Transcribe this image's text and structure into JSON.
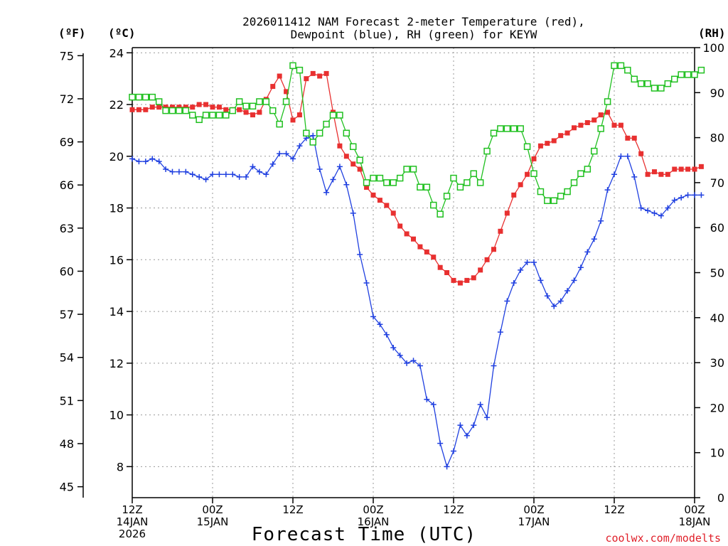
{
  "chart_data": {
    "type": "line",
    "title_line1": "2026011412 NAM Forecast 2-meter Temperature (red),",
    "title_line2": "Dewpoint (blue), RH (green) for KEYW",
    "units": {
      "left_outer": "(ºF)",
      "left_inner": "(ºC)",
      "right": "(RH)"
    },
    "xlabel": "Forecast Time (UTC)",
    "credit": "coolwx.com/modelts",
    "x_range": [
      0,
      84
    ],
    "y_celsius_range": [
      6.8,
      24.2
    ],
    "y_rh_range": [
      0,
      100
    ],
    "fahrenheit_ticks": [
      "45",
      "48",
      "51",
      "54",
      "57",
      "60",
      "63",
      "66",
      "69",
      "72",
      "75"
    ],
    "celsius_ticks": [
      "8",
      "10",
      "12",
      "14",
      "16",
      "18",
      "20",
      "22",
      "24"
    ],
    "rh_ticks": [
      "0",
      "10",
      "20",
      "30",
      "40",
      "50",
      "60",
      "70",
      "80",
      "90",
      "100"
    ],
    "x_ticks": [
      {
        "h": 0,
        "l1": "12Z",
        "l2": "14JAN",
        "l3": "2026"
      },
      {
        "h": 12,
        "l1": "00Z",
        "l2": "15JAN",
        "l3": ""
      },
      {
        "h": 24,
        "l1": "12Z",
        "l2": "",
        "l3": ""
      },
      {
        "h": 36,
        "l1": "00Z",
        "l2": "16JAN",
        "l3": ""
      },
      {
        "h": 48,
        "l1": "12Z",
        "l2": "",
        "l3": ""
      },
      {
        "h": 60,
        "l1": "00Z",
        "l2": "17JAN",
        "l3": ""
      },
      {
        "h": 72,
        "l1": "12Z",
        "l2": "",
        "l3": ""
      },
      {
        "h": 84,
        "l1": "00Z",
        "l2": "18JAN",
        "l3": ""
      }
    ],
    "series": [
      {
        "name": "Temperature",
        "units": "C",
        "color": "#e83030",
        "marker": "filled-square",
        "values": [
          21.8,
          21.8,
          21.8,
          21.9,
          21.9,
          21.9,
          21.9,
          21.9,
          21.9,
          21.9,
          22.0,
          22.0,
          21.9,
          21.9,
          21.8,
          21.8,
          21.8,
          21.7,
          21.6,
          21.7,
          22.2,
          22.7,
          23.1,
          22.5,
          21.4,
          21.6,
          23.0,
          23.2,
          23.1,
          23.2,
          21.7,
          20.4,
          20.0,
          19.7,
          19.5,
          18.8,
          18.5,
          18.3,
          18.1,
          17.8,
          17.3,
          17.0,
          16.8,
          16.5,
          16.3,
          16.1,
          15.7,
          15.5,
          15.2,
          15.1,
          15.2,
          15.3,
          15.6,
          16.0,
          16.4,
          17.1,
          17.8,
          18.5,
          18.9,
          19.3,
          19.9,
          20.4,
          20.5,
          20.6,
          20.8,
          20.9,
          21.1,
          21.2,
          21.3,
          21.4,
          21.6,
          21.7,
          21.2,
          21.2,
          20.7,
          20.7,
          20.1,
          19.3,
          19.4,
          19.3,
          19.3,
          19.5,
          19.5,
          19.5,
          19.5,
          19.6
        ]
      },
      {
        "name": "Dewpoint",
        "units": "C",
        "color": "#2040e0",
        "marker": "plus",
        "values": [
          19.9,
          19.8,
          19.8,
          19.9,
          19.8,
          19.5,
          19.4,
          19.4,
          19.4,
          19.3,
          19.2,
          19.1,
          19.3,
          19.3,
          19.3,
          19.3,
          19.2,
          19.2,
          19.6,
          19.4,
          19.3,
          19.7,
          20.1,
          20.1,
          19.9,
          20.4,
          20.7,
          20.8,
          19.5,
          18.6,
          19.1,
          19.6,
          18.9,
          17.8,
          16.2,
          15.1,
          13.8,
          13.5,
          13.1,
          12.6,
          12.3,
          12.0,
          12.1,
          11.9,
          10.6,
          10.4,
          8.9,
          8.0,
          8.6,
          9.6,
          9.2,
          9.6,
          10.4,
          9.9,
          11.9,
          13.2,
          14.4,
          15.1,
          15.6,
          15.9,
          15.9,
          15.2,
          14.6,
          14.2,
          14.4,
          14.8,
          15.2,
          15.7,
          16.3,
          16.8,
          17.5,
          18.7,
          19.3,
          20.0,
          20.0,
          19.2,
          18.0,
          17.9,
          17.8,
          17.7,
          18.0,
          18.3,
          18.4,
          18.5,
          18.5,
          18.5
        ]
      },
      {
        "name": "RH",
        "units": "%",
        "color": "#20c020",
        "marker": "open-square",
        "values": [
          89,
          89,
          89,
          89,
          88,
          86,
          86,
          86,
          86,
          85,
          84,
          85,
          85,
          85,
          85,
          86,
          88,
          87,
          87,
          88,
          88,
          86,
          83,
          88,
          96,
          95,
          81,
          79,
          81,
          83,
          85,
          85,
          81,
          78,
          75,
          70,
          71,
          71,
          70,
          70,
          71,
          73,
          73,
          69,
          69,
          65,
          63,
          67,
          71,
          69,
          70,
          72,
          70,
          77,
          81,
          82,
          82,
          82,
          82,
          78,
          72,
          68,
          66,
          66,
          67,
          68,
          70,
          72,
          73,
          77,
          82,
          88,
          96,
          96,
          95,
          93,
          92,
          92,
          91,
          91,
          92,
          93,
          94,
          94,
          94,
          95
        ]
      }
    ]
  }
}
